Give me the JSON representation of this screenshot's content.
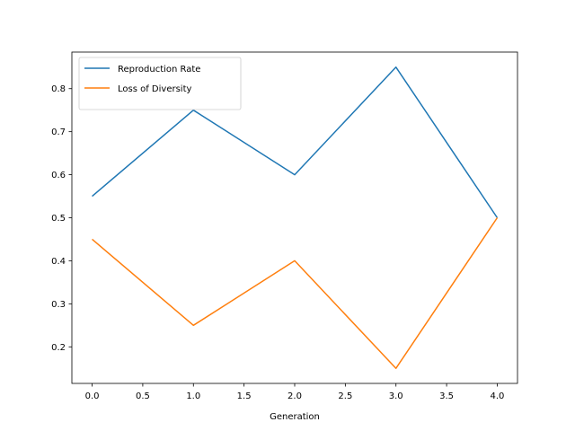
{
  "chart_data": {
    "type": "line",
    "title": "",
    "xlabel": "Generation",
    "ylabel": "",
    "x": [
      0,
      1,
      2,
      3,
      4
    ],
    "series": [
      {
        "name": "Reproduction Rate",
        "values": [
          0.55,
          0.75,
          0.6,
          0.85,
          0.5
        ],
        "color": "#1f77b4"
      },
      {
        "name": "Loss of Diversity",
        "values": [
          0.45,
          0.25,
          0.4,
          0.15,
          0.5
        ],
        "color": "#ff7f0e"
      }
    ],
    "xlim": [
      -0.2,
      4.2
    ],
    "ylim": [
      0.115,
      0.885
    ],
    "xticks": [
      "0.0",
      "0.5",
      "1.0",
      "1.5",
      "2.0",
      "2.5",
      "3.0",
      "3.5",
      "4.0"
    ],
    "yticks": [
      "0.2",
      "0.3",
      "0.4",
      "0.5",
      "0.6",
      "0.7",
      "0.8"
    ],
    "grid": false,
    "legend_position": "top-left"
  }
}
